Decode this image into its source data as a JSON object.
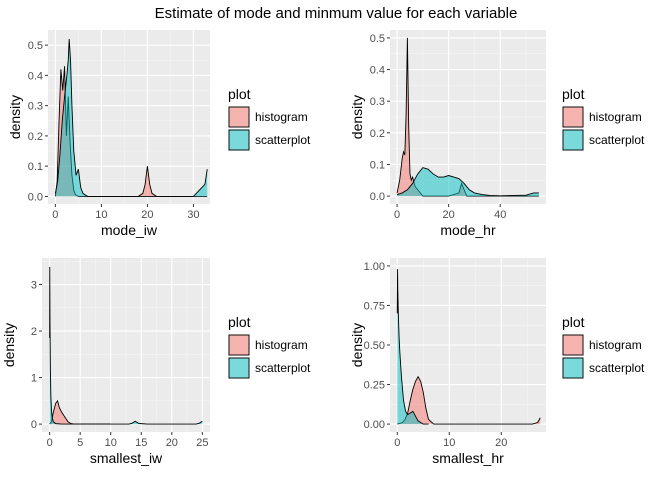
{
  "figure": {
    "title": "Estimate of mode and minmum value for each variable",
    "colors": {
      "histogram": "#F8766D",
      "scatterplot": "#00BFC4",
      "panel_bg": "#EBEBEB",
      "grid_major": "#FFFFFF",
      "grid_minor": "#F5F5F5"
    }
  },
  "chart_data": [
    {
      "type": "area",
      "xlabel": "mode_iw",
      "ylabel": "density",
      "xlim": [
        -1.6,
        33.6
      ],
      "ylim": [
        -0.025,
        0.55
      ],
      "xticks": [
        0,
        10,
        20,
        30
      ],
      "yticks": [
        0.0,
        0.1,
        0.2,
        0.3,
        0.4,
        0.5
      ],
      "ytick_labels": [
        "0.0",
        "0.1",
        "0.2",
        "0.3",
        "0.4",
        "0.5"
      ],
      "legend": {
        "title": "plot",
        "position": "right",
        "entries": [
          "histogram",
          "scatterplot"
        ]
      },
      "grid": true,
      "series": [
        {
          "name": "histogram",
          "x": [
            0,
            0.4,
            0.8,
            1.2,
            1.6,
            2.0,
            2.4,
            2.8,
            3.2,
            3.6,
            4.0,
            4.4,
            5.0,
            6,
            10,
            18,
            19,
            19.5,
            20,
            20.5,
            21,
            22,
            30,
            32.5,
            33
          ],
          "y": [
            0,
            0.05,
            0.25,
            0.42,
            0.35,
            0.43,
            0.2,
            0.33,
            0.18,
            0.07,
            0.02,
            0.005,
            0,
            0,
            0,
            0,
            0.01,
            0.04,
            0.1,
            0.04,
            0.01,
            0,
            0,
            0,
            0
          ]
        },
        {
          "name": "scatterplot",
          "x": [
            0,
            0.5,
            1.0,
            1.5,
            2.0,
            2.5,
            2.8,
            3.0,
            3.3,
            3.6,
            4.0,
            4.5,
            5.0,
            5.5,
            6.0,
            7.0,
            10,
            30,
            32.5,
            33
          ],
          "y": [
            0.01,
            0.05,
            0.14,
            0.25,
            0.33,
            0.4,
            0.45,
            0.52,
            0.45,
            0.3,
            0.15,
            0.07,
            0.09,
            0.03,
            0.01,
            0,
            0,
            0,
            0.04,
            0.09
          ]
        }
      ]
    },
    {
      "type": "area",
      "xlabel": "mode_hr",
      "ylabel": "density",
      "xlim": [
        -2.75,
        57.75
      ],
      "ylim": [
        -0.025,
        0.525
      ],
      "xticks": [
        0,
        20,
        40
      ],
      "yticks": [
        0.0,
        0.1,
        0.2,
        0.3,
        0.4,
        0.5
      ],
      "ytick_labels": [
        "0.0",
        "0.1",
        "0.2",
        "0.3",
        "0.4",
        "0.5"
      ],
      "legend": {
        "title": "plot",
        "position": "right",
        "entries": [
          "histogram",
          "scatterplot"
        ]
      },
      "grid": true,
      "series": [
        {
          "name": "histogram",
          "x": [
            0,
            1,
            2,
            2.5,
            3,
            3.5,
            4,
            4.5,
            5,
            5.5,
            6,
            7,
            8,
            10,
            15,
            20,
            24,
            25,
            26,
            27,
            30,
            55
          ],
          "y": [
            0.01,
            0.05,
            0.12,
            0.14,
            0.13,
            0.26,
            0.5,
            0.22,
            0.07,
            0.05,
            0.06,
            0.03,
            0.02,
            0,
            0,
            0,
            0.01,
            0.04,
            0.02,
            0,
            0,
            0
          ]
        },
        {
          "name": "scatterplot",
          "x": [
            0,
            2,
            4,
            6,
            8,
            10,
            12,
            14,
            16,
            18,
            20,
            22,
            24,
            26,
            28,
            30,
            33,
            36,
            40,
            45,
            50,
            53,
            55
          ],
          "y": [
            0.005,
            0.01,
            0.02,
            0.04,
            0.07,
            0.09,
            0.085,
            0.07,
            0.06,
            0.06,
            0.065,
            0.06,
            0.055,
            0.04,
            0.02,
            0.01,
            0.005,
            0.002,
            0.001,
            0.002,
            0.003,
            0.01,
            0.01
          ]
        }
      ]
    },
    {
      "type": "area",
      "xlabel": "smallest_iw",
      "ylabel": "density",
      "xlim": [
        -1.25,
        26.25
      ],
      "ylim": [
        -0.17,
        3.57
      ],
      "xticks": [
        0,
        5,
        10,
        15,
        20,
        25
      ],
      "yticks": [
        0,
        1,
        2,
        3
      ],
      "ytick_labels": [
        "0",
        "1",
        "2",
        "3"
      ],
      "legend": {
        "title": "plot",
        "position": "right",
        "entries": [
          "histogram",
          "scatterplot"
        ]
      },
      "grid": true,
      "series": [
        {
          "name": "histogram",
          "x": [
            0,
            0.3,
            0.6,
            1,
            1.3,
            1.6,
            2,
            2.5,
            3,
            3.5,
            4,
            10
          ],
          "y": [
            0,
            0.05,
            0.25,
            0.45,
            0.5,
            0.35,
            0.25,
            0.15,
            0.05,
            0.01,
            0,
            0
          ]
        },
        {
          "name": "scatterplot",
          "x": [
            0,
            0.02,
            0.06,
            0.12,
            0.2,
            0.3,
            0.4,
            0.6,
            1,
            2,
            13,
            13.5,
            14,
            14.5,
            15,
            16,
            24,
            24.5,
            25
          ],
          "y": [
            1.85,
            3.38,
            2.2,
            1.2,
            0.6,
            0.3,
            0.15,
            0.05,
            0.01,
            0,
            0,
            0.02,
            0.06,
            0.02,
            0.01,
            0,
            0,
            0.02,
            0.06
          ]
        }
      ]
    },
    {
      "type": "area",
      "xlabel": "smallest_hr",
      "ylabel": "density",
      "xlim": [
        -1.4,
        28.6
      ],
      "ylim": [
        -0.05,
        1.05
      ],
      "xticks": [
        0,
        10,
        20
      ],
      "yticks": [
        0.0,
        0.25,
        0.5,
        0.75,
        1.0
      ],
      "ytick_labels": [
        "0.00",
        "0.25",
        "0.50",
        "0.75",
        "1.00"
      ],
      "legend": {
        "title": "plot",
        "position": "right",
        "entries": [
          "histogram",
          "scatterplot"
        ]
      },
      "grid": true,
      "series": [
        {
          "name": "histogram",
          "x": [
            0,
            1,
            1.5,
            2,
            2.5,
            3,
            3.5,
            4,
            4.5,
            5,
            5.5,
            6,
            7,
            10,
            26,
            27,
            27.5
          ],
          "y": [
            0,
            0.01,
            0.03,
            0.07,
            0.15,
            0.22,
            0.27,
            0.3,
            0.27,
            0.2,
            0.1,
            0.03,
            0,
            0,
            0,
            0.01,
            0.04
          ]
        },
        {
          "name": "scatterplot",
          "x": [
            0,
            0.05,
            0.1,
            0.2,
            0.35,
            0.5,
            0.8,
            1.2,
            1.6,
            2,
            2.5,
            3,
            3.5,
            4,
            5,
            6
          ],
          "y": [
            0.7,
            0.98,
            0.85,
            0.7,
            0.55,
            0.45,
            0.3,
            0.15,
            0.08,
            0.06,
            0.07,
            0.08,
            0.05,
            0.02,
            0,
            0
          ]
        }
      ]
    }
  ]
}
